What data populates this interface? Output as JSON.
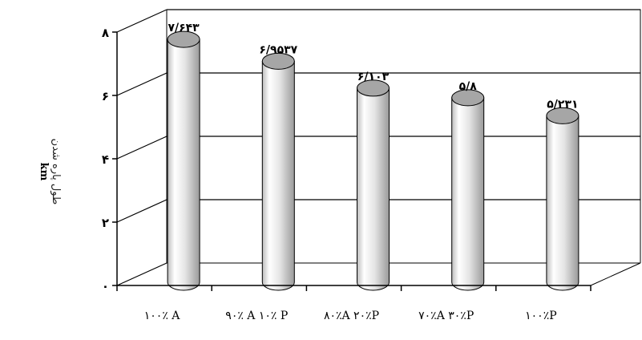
{
  "chart_data": {
    "type": "bar",
    "style": "3d-cylinder",
    "categories": [
      "۱۰۰٪ A",
      "۹۰٪ A ۱۰٪ P",
      "۸۰٪A ۲۰٪P",
      "۷۰٪A ۳۰٪P",
      "۱۰۰٪P"
    ],
    "values": [
      7.643,
      6.9537,
      6.103,
      5.8,
      5.231
    ],
    "value_labels": [
      "۷/۶۴۳",
      "۶/۹۵۳۷",
      "۶/۱۰۳",
      "۵/۸",
      "۵/۲۳۱"
    ],
    "y_ticks": [
      0,
      2,
      4,
      6,
      8
    ],
    "y_tick_labels": [
      "۰",
      "۲",
      "۴",
      "۶",
      "۸"
    ],
    "ylim": [
      0,
      8
    ],
    "ylabel": "طول پاره شدن",
    "ylabel_unit": "km",
    "xlabel": "",
    "title": "",
    "grid": true,
    "colors": {
      "bar_light": "#f4f4f4",
      "bar_dark": "#9a9a9a",
      "bar_top": "#a6a6a6",
      "axis": "#000000"
    }
  }
}
